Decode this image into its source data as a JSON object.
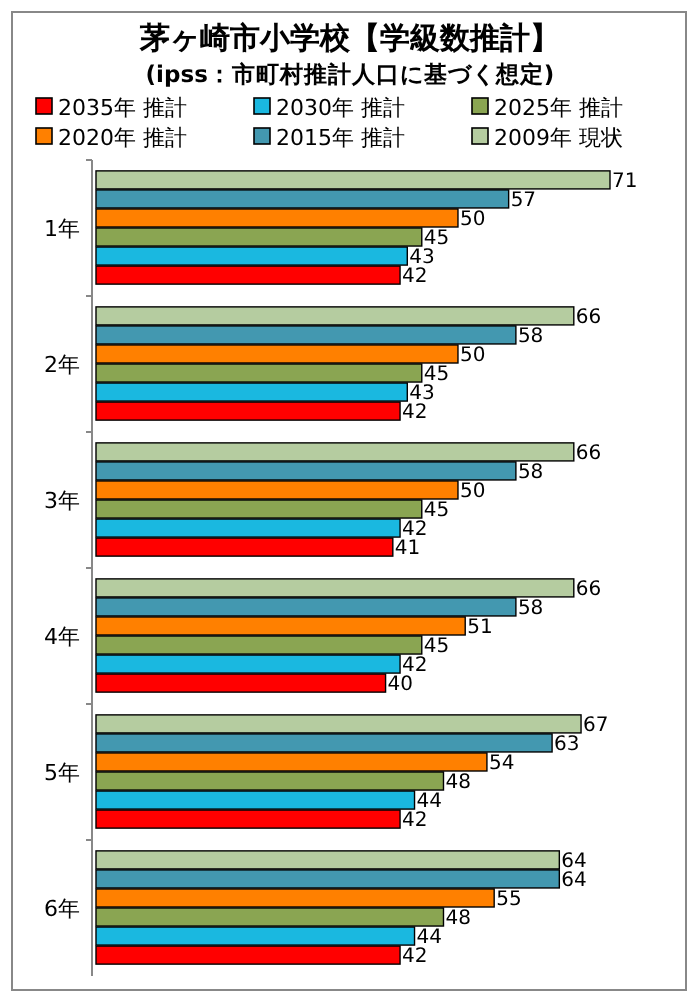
{
  "chart_data": {
    "type": "bar",
    "orientation": "horizontal",
    "title": "茅ヶ崎市小学校【学級数推計】",
    "subtitle": "(ipss：市町村推計人口に基づく想定)",
    "categories": [
      "1年",
      "2年",
      "3年",
      "4年",
      "5年",
      "6年"
    ],
    "data_labels": true,
    "legend": "top",
    "series": [
      {
        "name": "2035年 推計",
        "color": "#ff0000",
        "values": [
          42,
          42,
          41,
          40,
          42,
          42
        ]
      },
      {
        "name": "2030年 推計",
        "color": "#1ab8e0",
        "values": [
          43,
          43,
          42,
          42,
          44,
          44
        ]
      },
      {
        "name": "2025年 推計",
        "color": "#8aa552",
        "values": [
          45,
          45,
          45,
          45,
          48,
          48
        ]
      },
      {
        "name": "2020年 推計",
        "color": "#ff8000",
        "values": [
          50,
          50,
          50,
          51,
          54,
          55
        ]
      },
      {
        "name": "2015年 推計",
        "color": "#4398b0",
        "values": [
          57,
          58,
          58,
          58,
          63,
          64
        ]
      },
      {
        "name": "2009年 現状",
        "color": "#b5cca0",
        "values": [
          71,
          66,
          66,
          66,
          67,
          64
        ]
      }
    ]
  }
}
